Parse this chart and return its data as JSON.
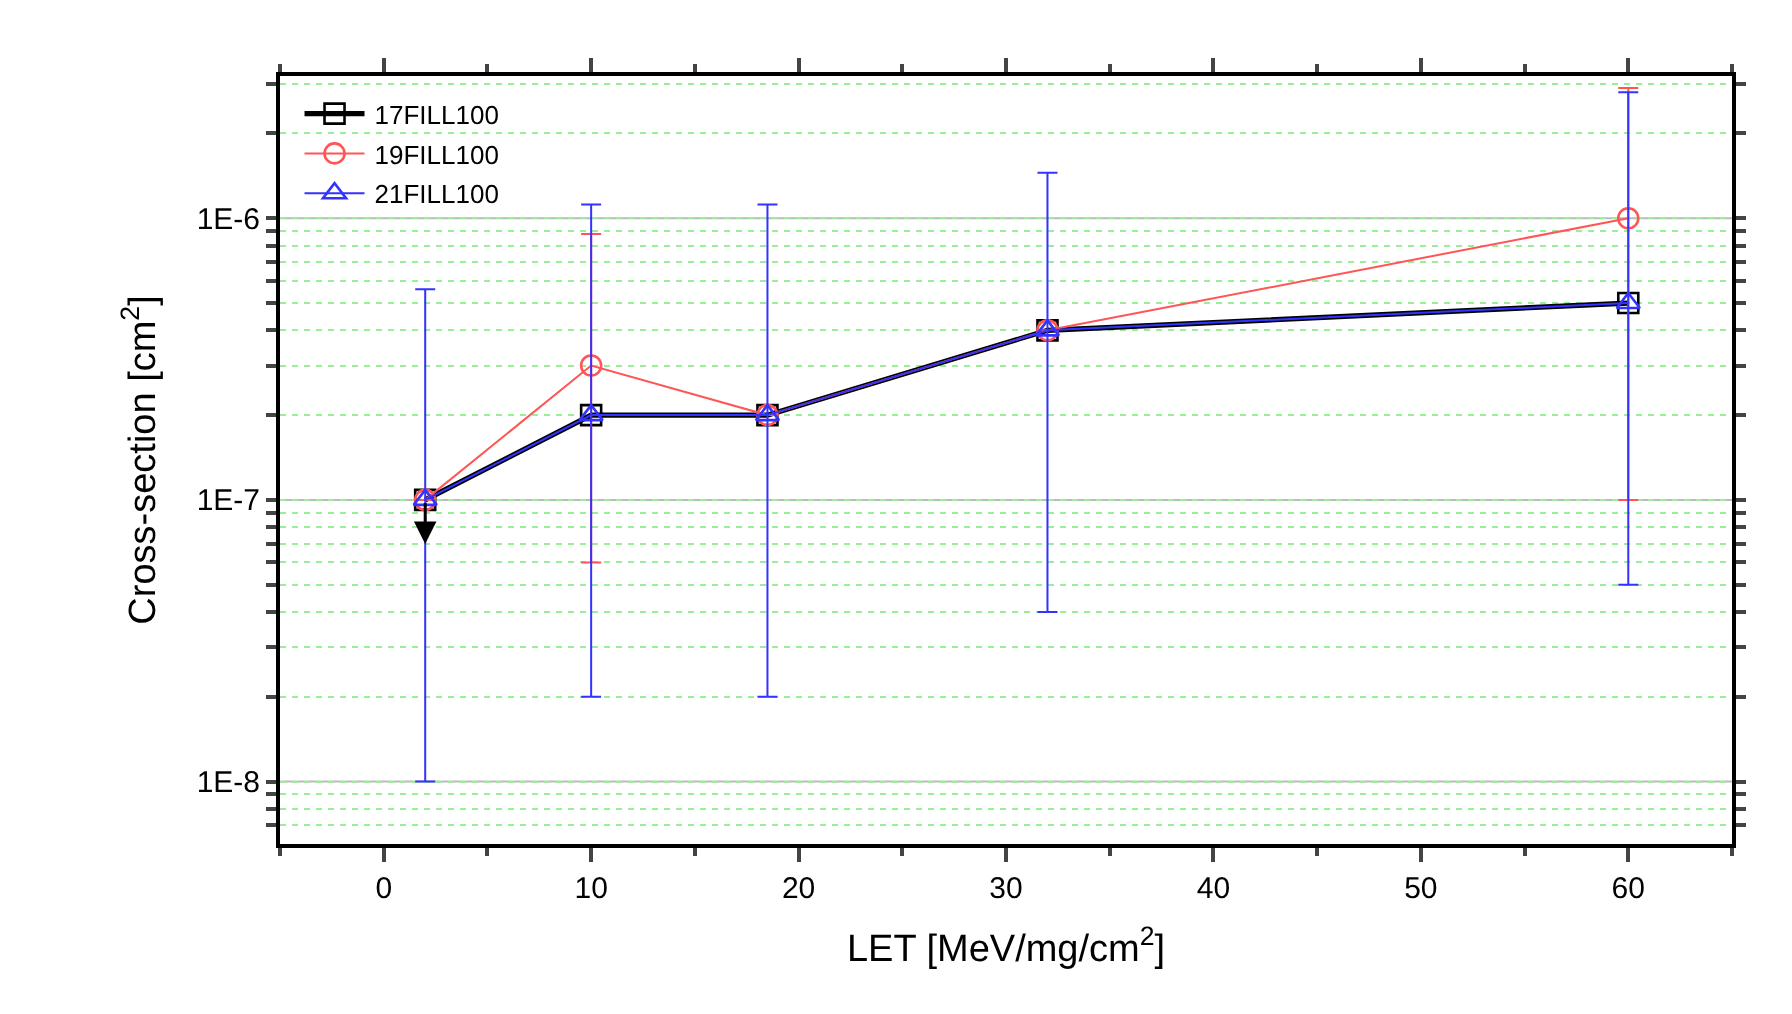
{
  "chart_data": {
    "type": "line",
    "xlabel": "LET [MeV/mg/cm$^{2}$]",
    "ylabel": "Cross-section [cm$^{2}$]",
    "x": [
      2,
      10,
      18.5,
      32,
      60
    ],
    "series": [
      {
        "name": "17FILL100",
        "color": "#000000",
        "marker": "square",
        "values": [
          1e-07,
          2e-07,
          2e-07,
          4e-07,
          5e-07
        ]
      },
      {
        "name": "19FILL100",
        "color": "#ff5555",
        "marker": "circle",
        "values": [
          1e-07,
          3e-07,
          2e-07,
          4e-07,
          1e-06
        ],
        "errors": [
          null,
          [
            6e-08,
            8.8e-07
          ],
          null,
          null,
          [
            1e-07,
            2.9e-06
          ]
        ]
      },
      {
        "name": "21FILL100",
        "color": "#3333ff",
        "marker": "triangle",
        "values": [
          1e-07,
          2e-07,
          2e-07,
          4e-07,
          5e-07
        ],
        "errors": [
          [
            1e-08,
            5.6e-07
          ],
          [
            2e-08,
            1.12e-06
          ],
          [
            2e-08,
            1.12e-06
          ],
          [
            4e-08,
            1.45e-06
          ],
          [
            5e-08,
            2.8e-06
          ]
        ]
      }
    ],
    "log": "y",
    "xlim": [
      -5,
      65
    ],
    "xticks": [
      0,
      10,
      20,
      30,
      40,
      50,
      60
    ],
    "ylim": [
      6e-09,
      3.2e-06
    ],
    "yticks": [
      {
        "value": 7e-09,
        "label": null
      },
      {
        "value": 8e-09,
        "label": null
      },
      {
        "value": 9e-09,
        "label": null
      },
      {
        "value": 1e-08,
        "label": "1E-8"
      },
      {
        "value": 2e-08,
        "label": null
      },
      {
        "value": 3e-08,
        "label": null
      },
      {
        "value": 4e-08,
        "label": null
      },
      {
        "value": 5e-08,
        "label": null
      },
      {
        "value": 6e-08,
        "label": null
      },
      {
        "value": 7e-08,
        "label": null
      },
      {
        "value": 8e-08,
        "label": null
      },
      {
        "value": 9e-08,
        "label": null
      },
      {
        "value": 1e-07,
        "label": "1E-7"
      },
      {
        "value": 2e-07,
        "label": null
      },
      {
        "value": 3e-07,
        "label": null
      },
      {
        "value": 4e-07,
        "label": null
      },
      {
        "value": 5e-07,
        "label": null
      },
      {
        "value": 6e-07,
        "label": null
      },
      {
        "value": 7e-07,
        "label": null
      },
      {
        "value": 8e-07,
        "label": null
      },
      {
        "value": 9e-07,
        "label": null
      },
      {
        "value": 1e-06,
        "label": "1E-6"
      },
      {
        "value": 2e-06,
        "label": null
      },
      {
        "value": 3e-06,
        "label": null
      }
    ],
    "grid": "y",
    "legend": "top left",
    "line_style": "solid"
  }
}
